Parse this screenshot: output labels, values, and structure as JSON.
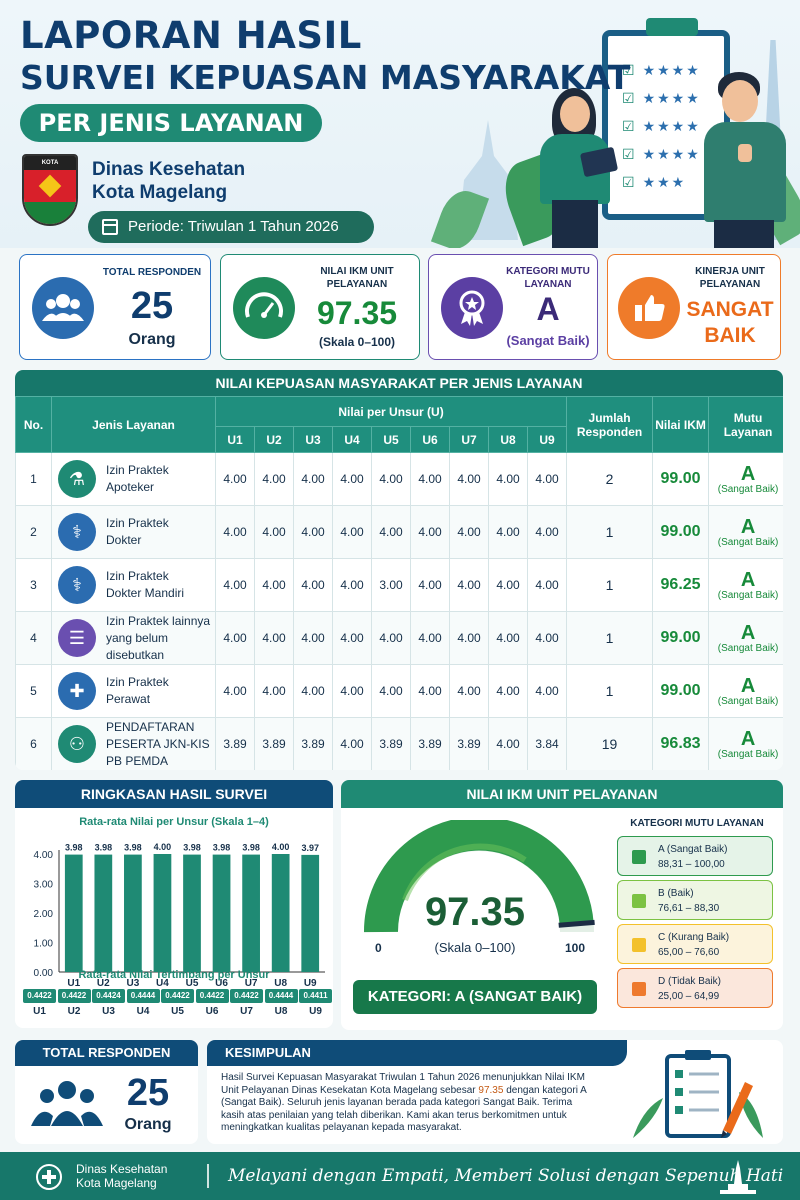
{
  "header": {
    "title_line1": "LAPORAN HASIL",
    "title_line2": "SURVEI KEPUASAN MASYARAKAT",
    "subtitle": "PER JENIS LAYANAN",
    "logo_text": "KOTA MAGELANG",
    "agency_line1": "Dinas Kesehatan",
    "agency_line2": "Kota Magelang",
    "period": "Periode: Triwulan 1 Tahun 2026"
  },
  "kpis": {
    "total": {
      "label": "TOTAL RESPONDEN",
      "value": "25",
      "unit": "Orang",
      "icon": "people-icon"
    },
    "ikm": {
      "label": "NILAI IKM UNIT PELAYANAN",
      "value": "97.35",
      "unit": "(Skala 0–100)",
      "icon": "gauge-icon"
    },
    "kategori": {
      "label": "KATEGORI MUTU LAYANAN",
      "value": "A",
      "unit": "(Sangat Baik)",
      "icon": "award-icon"
    },
    "kinerja": {
      "label": "KINERJA UNIT PELAYANAN",
      "value_line1": "SANGAT",
      "value_line2": "BAIK",
      "icon": "thumbs-up-icon"
    }
  },
  "table": {
    "title": "NILAI KEPUASAN MASYARAKAT PER JENIS LAYANAN",
    "headers": {
      "no": "No.",
      "layanan": "Jenis Layanan",
      "nilai_unsur": "Nilai per Unsur (U)",
      "units": [
        "U1",
        "U2",
        "U3",
        "U4",
        "U5",
        "U6",
        "U7",
        "U8",
        "U9"
      ],
      "jumlah": "Jumlah Responden",
      "nilai_ikm": "Nilai IKM",
      "mutu": "Mutu Layanan"
    },
    "rows": [
      {
        "no": "1",
        "name_l1": "Izin Praktek",
        "name_l2": "Apoteker",
        "name_l3": "",
        "icon": "mortar-pestle-icon",
        "values": [
          "4.00",
          "4.00",
          "4.00",
          "4.00",
          "4.00",
          "4.00",
          "4.00",
          "4.00",
          "4.00"
        ],
        "jumlah": "2",
        "ikm": "99.00",
        "mutu": "A",
        "mutu_desc": "(Sangat Baik)"
      },
      {
        "no": "2",
        "name_l1": "Izin Praktek",
        "name_l2": "Dokter",
        "name_l3": "",
        "icon": "doctor-icon",
        "values": [
          "4.00",
          "4.00",
          "4.00",
          "4.00",
          "4.00",
          "4.00",
          "4.00",
          "4.00",
          "4.00"
        ],
        "jumlah": "1",
        "ikm": "99.00",
        "mutu": "A",
        "mutu_desc": "(Sangat Baik)"
      },
      {
        "no": "3",
        "name_l1": "Izin Praktek",
        "name_l2": "Dokter Mandiri",
        "name_l3": "",
        "icon": "doctor-icon",
        "values": [
          "4.00",
          "4.00",
          "4.00",
          "4.00",
          "3.00",
          "4.00",
          "4.00",
          "4.00",
          "4.00"
        ],
        "jumlah": "1",
        "ikm": "96.25",
        "mutu": "A",
        "mutu_desc": "(Sangat Baik)"
      },
      {
        "no": "4",
        "name_l1": "Izin Praktek lainnya",
        "name_l2": "yang belum disebutkan",
        "name_l3": "",
        "icon": "document-icon",
        "values": [
          "4.00",
          "4.00",
          "4.00",
          "4.00",
          "4.00",
          "4.00",
          "4.00",
          "4.00",
          "4.00"
        ],
        "jumlah": "1",
        "ikm": "99.00",
        "mutu": "A",
        "mutu_desc": "(Sangat Baik)"
      },
      {
        "no": "5",
        "name_l1": "Izin Praktek",
        "name_l2": "Perawat",
        "name_l3": "",
        "icon": "nurse-icon",
        "values": [
          "4.00",
          "4.00",
          "4.00",
          "4.00",
          "4.00",
          "4.00",
          "4.00",
          "4.00",
          "4.00"
        ],
        "jumlah": "1",
        "ikm": "99.00",
        "mutu": "A",
        "mutu_desc": "(Sangat Baik)"
      },
      {
        "no": "6",
        "name_l1": "PENDAFTARAN",
        "name_l2": "PESERTA JKN-KIS",
        "name_l3": "PB PEMDA",
        "icon": "group-icon",
        "values": [
          "3.89",
          "3.89",
          "3.89",
          "4.00",
          "3.89",
          "3.89",
          "3.89",
          "4.00",
          "3.84"
        ],
        "jumlah": "19",
        "ikm": "96.83",
        "mutu": "A",
        "mutu_desc": "(Sangat Baik)"
      }
    ]
  },
  "ringkasan": {
    "title": "RINGKASAN HASIL SURVEI",
    "weighted_title": "Rata-rata Nilai Tertimbang per Unsur",
    "weighted": [
      "0.4422",
      "0.4422",
      "0.4424",
      "0.4444",
      "0.4422",
      "0.4422",
      "0.4422",
      "0.4444",
      "0.4411"
    ]
  },
  "chart_data": {
    "type": "bar",
    "title": "Rata-rata Nilai per Unsur (Skala 1–4)",
    "categories": [
      "U1",
      "U2",
      "U3",
      "U4",
      "U5",
      "U6",
      "U7",
      "U8",
      "U9"
    ],
    "values": [
      3.98,
      3.98,
      3.98,
      4.0,
      3.98,
      3.98,
      3.98,
      4.0,
      3.97
    ],
    "value_labels": [
      "3.98",
      "3.98",
      "3.98",
      "4.00",
      "3.98",
      "3.98",
      "3.98",
      "4.00",
      "3.97"
    ],
    "ylim": [
      0,
      4
    ],
    "yticks": [
      "0.00",
      "1.00",
      "2.00",
      "3.00",
      "4.00"
    ],
    "bar_color": "#1f8a74",
    "grid": false
  },
  "nilai_ikm": {
    "title": "NILAI IKM UNIT PELAYANAN",
    "value": "97.35",
    "value_num": 97.35,
    "scale": "(Skala 0–100)",
    "min": "0",
    "max": "100",
    "kategori": "KATEGORI: A (SANGAT BAIK)",
    "legend_title": "KATEGORI MUTU LAYANAN",
    "legend": [
      {
        "name": "A (Sangat Baik)",
        "range": "88,31 – 100,00",
        "color": "#2e9a4e",
        "bg": "#e5f3e8"
      },
      {
        "name": "B (Baik)",
        "range": "76,61 – 88,30",
        "color": "#7cc243",
        "bg": "#eef6e3"
      },
      {
        "name": "C (Kurang Baik)",
        "range": "65,00 – 76,60",
        "color": "#f3c12b",
        "bg": "#fcf3dc"
      },
      {
        "name": "D (Tidak Baik)",
        "range": "25,00 – 64,99",
        "color": "#ee7a2e",
        "bg": "#fbe7dc"
      }
    ]
  },
  "bottom": {
    "total_title": "TOTAL RESPONDEN",
    "total_value": "25",
    "total_unit": "Orang",
    "kes_title": "KESIMPULAN",
    "kes_p1": "Hasil Survei Kepuasan Masyarakat Triwulan 1 Tahun 2026 menunjukkan Nilai IKM Unit Pelayanan Dinas Kesekatan Kota Magelang sebesar ",
    "kes_hl": "97.35",
    "kes_p2": " dengan kategori A (Sangat Baik). Seluruh jenis layanan berada pada kategori Sangat Baik. Terima kasih atas penilaian yang telah diberikan. Kami akan terus berkomitmen untuk meningkatkan kualitas pelayanan kepada masyarakat."
  },
  "footer": {
    "line1": "Dinas Kesehatan",
    "line2": "Kota Magelang",
    "quote": "Melayani dengan Empati, Memberi Solusi dengan Sepenuh Hati"
  }
}
